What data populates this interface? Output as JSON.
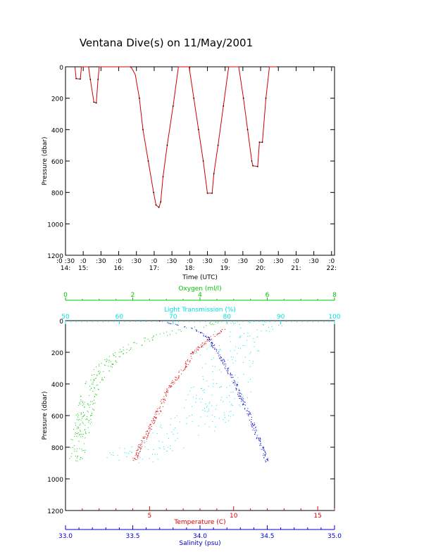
{
  "title": "Ventana Dive(s) on 11/May/2001",
  "colors": {
    "axis": "#000000",
    "temperature": "#e00000",
    "oxygen": "#00c800",
    "light_transmission": "#00e0e0",
    "salinity": "#0000cc",
    "trace": "#d00000"
  },
  "chart_data": [
    {
      "type": "line",
      "title": "Ventana Dive(s) on 11/May/2001",
      "xlabel": "Time (UTC)",
      "ylabel": "Pressure (dbar)",
      "xlim": [
        "14:30",
        "22:05"
      ],
      "ylim": [
        1200,
        0
      ],
      "y_inverted": true,
      "grid": false,
      "yticks": [
        0,
        200,
        400,
        600,
        800,
        1000,
        1200
      ],
      "xticks": [
        {
          "t": "14:30",
          "top": ":0 :30",
          "bottom": "14:"
        },
        {
          "t": "15:00",
          "top": ":0",
          "bottom": "15:"
        },
        {
          "t": "15:30",
          "top": ":30",
          "bottom": ""
        },
        {
          "t": "16:00",
          "top": ":0",
          "bottom": "16:"
        },
        {
          "t": "16:30",
          "top": ":30",
          "bottom": ""
        },
        {
          "t": "17:00",
          "top": ":0",
          "bottom": "17:"
        },
        {
          "t": "17:30",
          "top": ":30",
          "bottom": ""
        },
        {
          "t": "18:00",
          "top": ":0",
          "bottom": "18:"
        },
        {
          "t": "18:30",
          "top": ":30",
          "bottom": ""
        },
        {
          "t": "19:00",
          "top": ":0",
          "bottom": "19:"
        },
        {
          "t": "19:30",
          "top": ":30",
          "bottom": ""
        },
        {
          "t": "20:00",
          "top": ":0",
          "bottom": "20:"
        },
        {
          "t": "20:30",
          "top": ":30",
          "bottom": ""
        },
        {
          "t": "21:00",
          "top": ":0",
          "bottom": "21:"
        },
        {
          "t": "21:30",
          "top": ":30",
          "bottom": ""
        },
        {
          "t": "22:00",
          "top": ":0",
          "bottom": "22:"
        }
      ],
      "series": [
        {
          "color": "#d00000",
          "points": [
            [
              "14:46",
              0
            ],
            [
              "14:48",
              75
            ],
            [
              "14:55",
              78
            ],
            [
              "14:57",
              0
            ],
            [
              "15:09",
              0
            ],
            [
              "15:12",
              80
            ],
            [
              "15:18",
              225
            ],
            [
              "15:22",
              230
            ],
            [
              "15:25",
              80
            ],
            [
              "15:27",
              0
            ],
            [
              "15:39",
              0
            ],
            [
              "16:19",
              0
            ],
            [
              "16:22",
              8
            ],
            [
              "16:28",
              50
            ],
            [
              "16:35",
              200
            ],
            [
              "16:41",
              400
            ],
            [
              "16:50",
              600
            ],
            [
              "16:59",
              800
            ],
            [
              "17:03",
              880
            ],
            [
              "17:08",
              895
            ],
            [
              "17:11",
              860
            ],
            [
              "17:15",
              700
            ],
            [
              "17:22",
              500
            ],
            [
              "17:32",
              250
            ],
            [
              "17:41",
              0
            ],
            [
              "17:59",
              0
            ],
            [
              "18:07",
              200
            ],
            [
              "18:15",
              400
            ],
            [
              "18:23",
              600
            ],
            [
              "18:30",
              805
            ],
            [
              "18:38",
              805
            ],
            [
              "18:41",
              680
            ],
            [
              "18:48",
              500
            ],
            [
              "18:57",
              250
            ],
            [
              "19:06",
              0
            ],
            [
              "19:23",
              0
            ],
            [
              "19:31",
              200
            ],
            [
              "19:38",
              400
            ],
            [
              "19:45",
              600
            ],
            [
              "19:47",
              630
            ],
            [
              "19:55",
              635
            ],
            [
              "19:58",
              480
            ],
            [
              "20:03",
              480
            ],
            [
              "20:09",
              200
            ],
            [
              "20:15",
              0
            ],
            [
              "20:27",
              0
            ]
          ]
        }
      ]
    },
    {
      "type": "scatter",
      "ylabel": "Pressure (dbar)",
      "ylim": [
        1200,
        0
      ],
      "y_inverted": true,
      "grid": false,
      "yticks": [
        0,
        200,
        400,
        600,
        800,
        1000,
        1200
      ],
      "axes": {
        "oxygen": {
          "label": "Oxygen (ml/l)",
          "range": [
            0,
            8
          ],
          "ticks": [
            0,
            2,
            4,
            6,
            8
          ],
          "position": "top"
        },
        "light_transmission": {
          "label": "Light Transmission (%)",
          "range": [
            50,
            100
          ],
          "ticks": [
            50,
            60,
            70,
            80,
            90,
            100
          ],
          "position": "top"
        },
        "temperature": {
          "label": "Temperature (C)",
          "range": [
            0,
            16
          ],
          "ticks": [
            5,
            10,
            15
          ],
          "position": "bottom"
        },
        "salinity": {
          "label": "Salinity (psu)",
          "range": [
            33.0,
            35.0
          ],
          "ticks": [
            "33.0",
            "33.5",
            "34.0",
            "34.5",
            "35.0"
          ],
          "position": "bottom"
        }
      },
      "series": [
        {
          "axis": "oxygen",
          "color": "#00c800",
          "profile": [
            [
              0,
              4.7
            ],
            [
              20,
              4.3
            ],
            [
              50,
              3.6
            ],
            [
              100,
              2.6
            ],
            [
              150,
              2.1
            ],
            [
              200,
              1.6
            ],
            [
              300,
              1.1
            ],
            [
              400,
              0.8
            ],
            [
              500,
              0.65
            ],
            [
              600,
              0.55
            ],
            [
              700,
              0.45
            ],
            [
              800,
              0.35
            ],
            [
              890,
              0.35
            ]
          ],
          "spread": 0.25
        },
        {
          "axis": "light_transmission",
          "color": "#00e0e0",
          "profile": [
            [
              0,
              87
            ],
            [
              50,
              84
            ],
            [
              100,
              82
            ],
            [
              200,
              80
            ],
            [
              300,
              80
            ],
            [
              400,
              79
            ],
            [
              500,
              78
            ],
            [
              600,
              76
            ],
            [
              700,
              72
            ],
            [
              800,
              66
            ],
            [
              900,
              60
            ]
          ],
          "spread": 6
        },
        {
          "axis": "temperature",
          "color": "#e00000",
          "profile": [
            [
              50,
              9.5
            ],
            [
              100,
              8.7
            ],
            [
              200,
              7.6
            ],
            [
              300,
              7.0
            ],
            [
              400,
              6.3
            ],
            [
              500,
              5.8
            ],
            [
              600,
              5.4
            ],
            [
              700,
              4.9
            ],
            [
              800,
              4.4
            ],
            [
              880,
              4.1
            ]
          ],
          "spread": 0.15
        },
        {
          "axis": "salinity",
          "color": "#0000cc",
          "profile": [
            [
              0,
              33.7
            ],
            [
              50,
              33.95
            ],
            [
              100,
              34.05
            ],
            [
              200,
              34.13
            ],
            [
              300,
              34.2
            ],
            [
              400,
              34.26
            ],
            [
              500,
              34.31
            ],
            [
              600,
              34.37
            ],
            [
              700,
              34.41
            ],
            [
              800,
              34.46
            ],
            [
              900,
              34.5
            ]
          ],
          "spread": 0.015
        }
      ]
    }
  ]
}
